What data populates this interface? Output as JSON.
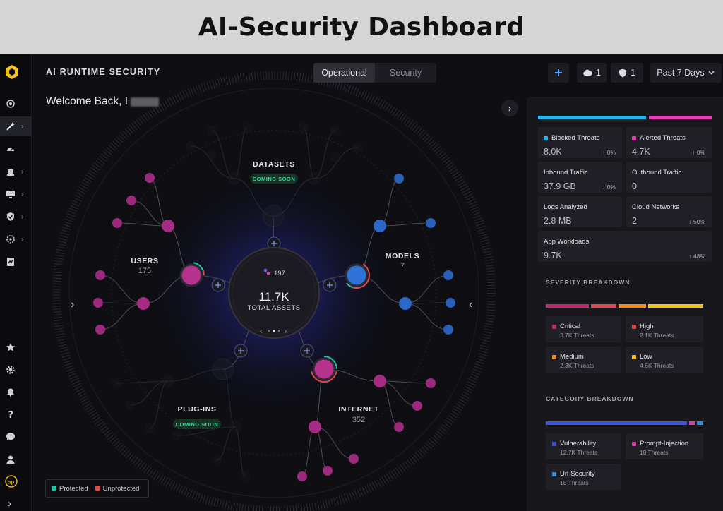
{
  "banner": {
    "title": "AI-Security Dashboard"
  },
  "header": {
    "app_title": "AI RUNTIME SECURITY",
    "tabs": [
      {
        "label": "Operational",
        "active": true
      },
      {
        "label": "Security",
        "active": false
      }
    ],
    "welcome": "Welcome Back, I",
    "add_icon": "plus-icon",
    "cloud_count": "1",
    "shield_count": "1",
    "time_range": "Past 7 Days"
  },
  "graph": {
    "center": {
      "count": "197",
      "total": "11.7K",
      "label": "TOTAL ASSETS"
    },
    "users": {
      "label": "USERS",
      "count": "175"
    },
    "models": {
      "label": "MODELS",
      "count": "7"
    },
    "datasets": {
      "label": "DATASETS",
      "badge": "COMING SOON"
    },
    "plugins": {
      "label": "PLUG-INS",
      "badge": "COMING SOON"
    },
    "internet": {
      "label": "INTERNET",
      "count": "352"
    }
  },
  "legend": {
    "protected": "Protected",
    "unprotected": "Unprotected"
  },
  "colors": {
    "blocked": "#29b6e8",
    "alerted": "#e43fb3",
    "critical": "#c2266f",
    "high": "#e0484e",
    "medium": "#f08a1c",
    "low": "#f2c51a",
    "vulnerability": "#3b55d8",
    "prompt": "#d63fa6",
    "url": "#2f8fe6",
    "protected": "#1fc7a2",
    "unprotected": "#e14a4a"
  },
  "stats": {
    "blocked": {
      "label": "Blocked Threats",
      "value": "8.0K",
      "change": "↑ 0%"
    },
    "alerted": {
      "label": "Alerted Threats",
      "value": "4.7K",
      "change": "↑ 0%"
    },
    "inbound": {
      "label": "Inbound Traffic",
      "value": "37.9 GB",
      "change": "↓ 0%"
    },
    "outbound": {
      "label": "Outbound Traffic",
      "value": "0"
    },
    "logs": {
      "label": "Logs Analyzed",
      "value": "2.8 MB"
    },
    "cloud": {
      "label": "Cloud Networks",
      "value": "2",
      "change": "↓ 50%"
    },
    "workloads": {
      "label": "App Workloads",
      "value": "9.7K",
      "change": "↑ 48%"
    }
  },
  "severity": {
    "title": "SEVERITY BREAKDOWN",
    "items": [
      {
        "label": "Critical",
        "threats": "3.7K Threats"
      },
      {
        "label": "High",
        "threats": "2.1K Threats"
      },
      {
        "label": "Medium",
        "threats": "2.3K Threats"
      },
      {
        "label": "Low",
        "threats": "4.6K Threats"
      }
    ]
  },
  "category": {
    "title": "CATEGORY BREAKDOWN",
    "items": [
      {
        "label": "Vulnerability",
        "threats": "12.7K Threats"
      },
      {
        "label": "Prompt-Injection",
        "threats": "18 Threats"
      },
      {
        "label": "Url-Security",
        "threats": "18 Threats"
      }
    ]
  }
}
